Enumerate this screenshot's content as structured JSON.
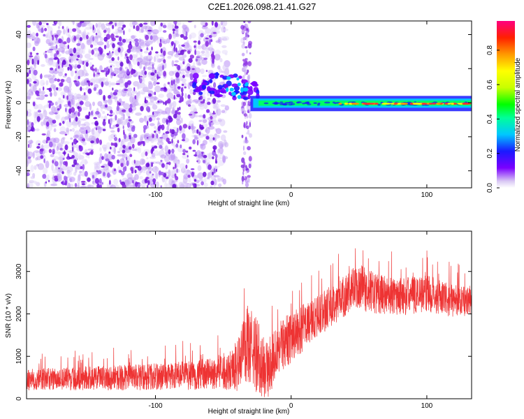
{
  "title": "C2E1.2026.098.21.41.G27",
  "chart_data": [
    {
      "type": "heatmap",
      "name": "spectrogram",
      "xlabel": "Height of straight line (km)",
      "ylabel": "Frequency (Hz)",
      "xlim": [
        -195,
        133
      ],
      "ylim": [
        -50,
        48
      ],
      "xticks": [
        -100,
        0,
        100
      ],
      "xtick_labels": [
        "-100",
        "0",
        "100"
      ],
      "yticks": [
        -40,
        -20,
        0,
        20,
        40
      ],
      "ytick_labels": [
        "-40",
        "-20",
        "0",
        "20",
        "40"
      ],
      "colorbar": {
        "label": "Normalized spectral amplitude",
        "range": [
          0,
          0.97
        ],
        "ticks": [
          0.0,
          0.2,
          0.4,
          0.6,
          0.8
        ],
        "tick_labels": [
          "0.0",
          "0.2",
          "0.4",
          "0.6",
          "0.8"
        ],
        "colormap": "rainbow (white-violet-blue-cyan-green-yellow-orange-red-magenta)"
      },
      "features": {
        "noise_region_x": [
          -195,
          -55
        ],
        "carrier_line": {
          "x_start": -30,
          "x_end": 133,
          "frequency_hz": 0,
          "peak_amplitude": 0.9
        }
      }
    },
    {
      "type": "line",
      "name": "snr",
      "xlabel": "Height of straight line (km)",
      "ylabel": "SNR (10 * v/v)",
      "xlim": [
        -195,
        133
      ],
      "ylim": [
        0,
        3950
      ],
      "xticks": [
        -100,
        0,
        100
      ],
      "xtick_labels": [
        "-100",
        "0",
        "100"
      ],
      "yticks": [
        0,
        1000,
        2000,
        3000
      ],
      "ytick_labels": [
        "0",
        "1000",
        "2000",
        "3000"
      ],
      "color": "#ee3333",
      "envelope": {
        "x": [
          -195,
          -150,
          -100,
          -70,
          -50,
          -40,
          -32,
          -25,
          -18,
          -10,
          0,
          10,
          20,
          30,
          40,
          50,
          60,
          70,
          80,
          90,
          100,
          110,
          120,
          133
        ],
        "mean": [
          450,
          480,
          520,
          560,
          620,
          750,
          1300,
          1000,
          600,
          1200,
          1450,
          1700,
          1950,
          2200,
          2450,
          2650,
          2500,
          2450,
          2400,
          2450,
          2500,
          2380,
          2300,
          2300
        ],
        "spread": [
          260,
          280,
          320,
          350,
          400,
          600,
          900,
          900,
          700,
          650,
          600,
          550,
          500,
          480,
          500,
          550,
          500,
          450,
          450,
          450,
          450,
          400,
          380,
          380
        ]
      }
    }
  ]
}
